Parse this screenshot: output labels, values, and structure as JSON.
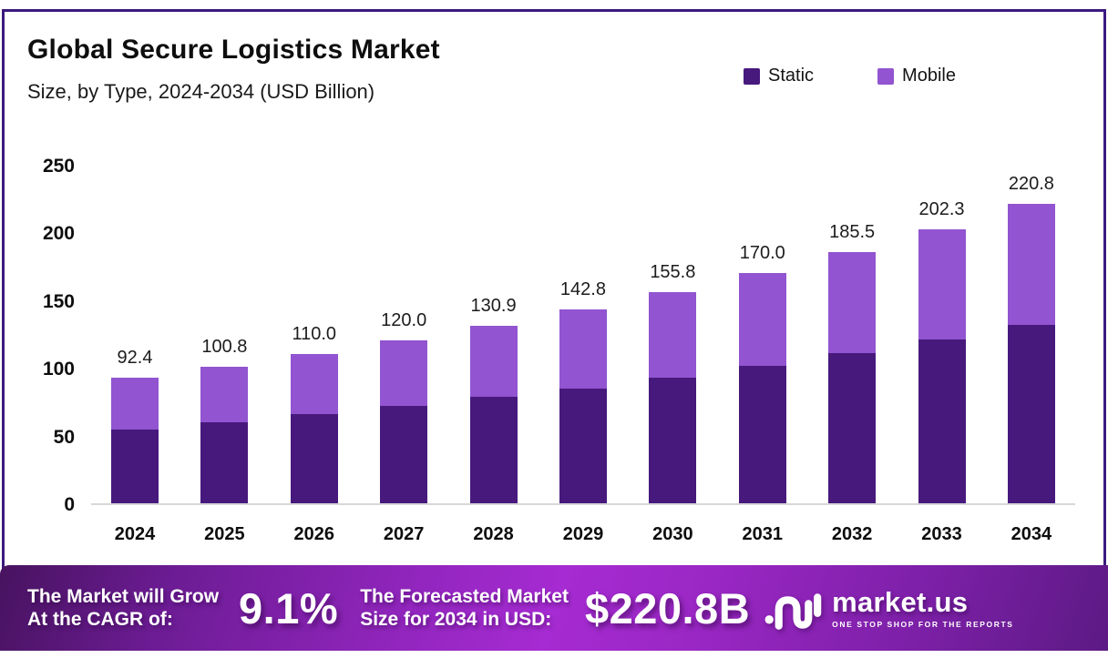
{
  "frame": {
    "border_color": "#3c1a7d"
  },
  "header": {
    "title": "Global Secure Logistics Market",
    "subtitle": "Size, by Type, 2024-2034 (USD Billion)"
  },
  "legend": {
    "items": [
      {
        "label": "Static",
        "color": "#47197d"
      },
      {
        "label": "Mobile",
        "color": "#9254d0"
      }
    ]
  },
  "chart_data": {
    "type": "bar",
    "stacked": true,
    "title": "Global Secure Logistics Market Size, by Type, 2024-2034 (USD Billion)",
    "categories": [
      "2024",
      "2025",
      "2026",
      "2027",
      "2028",
      "2029",
      "2030",
      "2031",
      "2032",
      "2033",
      "2034"
    ],
    "series": [
      {
        "name": "Static",
        "color": "#47197d",
        "values": [
          54.4,
          60.0,
          65.6,
          71.6,
          78.6,
          84.8,
          92.8,
          101.4,
          110.6,
          120.6,
          131.8
        ]
      },
      {
        "name": "Mobile",
        "color": "#9254d0",
        "values": [
          38.0,
          40.8,
          44.4,
          48.4,
          52.3,
          58.0,
          63.0,
          68.6,
          74.9,
          81.7,
          89.0
        ]
      }
    ],
    "totals": [
      92.4,
      100.8,
      110.0,
      120.0,
      130.9,
      142.8,
      155.8,
      170.0,
      185.5,
      202.3,
      220.8
    ],
    "total_labels": [
      "92.4",
      "100.8",
      "110.0",
      "120.0",
      "130.9",
      "142.8",
      "155.8",
      "170.0",
      "185.5",
      "202.3",
      "220.8"
    ],
    "xlabel": "",
    "ylabel": "",
    "yticks": [
      0,
      50,
      100,
      150,
      200,
      250
    ],
    "ylim": [
      0,
      250
    ],
    "grid": false,
    "legend_position": "top-right"
  },
  "banner": {
    "cagr_label_line1": "The Market will Grow",
    "cagr_label_line2": "At the CAGR of:",
    "cagr_value": "9.1%",
    "forecast_label_line1": "The Forecasted Market",
    "forecast_label_line2": "Size for 2034 in USD:",
    "forecast_value": "$220.8B",
    "logo_text": "market.us",
    "logo_tagline": "ONE STOP SHOP FOR THE REPORTS"
  }
}
